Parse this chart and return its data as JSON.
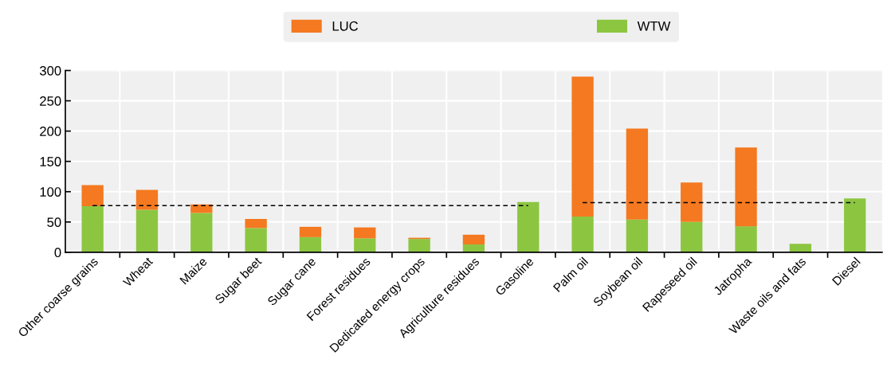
{
  "chart_data": {
    "type": "bar",
    "stacked": true,
    "categories": [
      "Other coarse grains",
      "Wheat",
      "Maize",
      "Sugar beet",
      "Sugar cane",
      "Forest residues",
      "Dedicated energy crops",
      "Agriculture residues",
      "Gasoline",
      "Palm oil",
      "Soybean oil",
      "Rapeseed oil",
      "Jatropha",
      "Waste oils and fats",
      "Diesel"
    ],
    "series": [
      {
        "name": "WTW",
        "color": "#8cc641",
        "values": [
          76,
          70,
          65,
          40,
          25,
          23,
          22,
          13,
          83,
          59,
          54,
          50,
          43,
          14,
          89
        ]
      },
      {
        "name": "LUC",
        "color": "#f47920",
        "values": [
          35,
          33,
          14,
          15,
          17,
          18,
          2,
          16,
          0,
          231,
          150,
          65,
          130,
          0,
          0
        ]
      },
      {
        "type": "line",
        "color": "#000000",
        "line_style": "dashed",
        "values": [
          77,
          77,
          77,
          77,
          77,
          77,
          77,
          77,
          77,
          null,
          null,
          null,
          null,
          null,
          null
        ]
      },
      {
        "type": "line",
        "color": "#000000",
        "line_style": "dashed",
        "values": [
          null,
          null,
          null,
          null,
          null,
          null,
          null,
          null,
          null,
          82,
          82,
          82,
          82,
          82,
          82
        ]
      }
    ],
    "ylim": [
      0,
      300
    ],
    "yticks": [
      0,
      50,
      100,
      150,
      200,
      250,
      300
    ],
    "grid": true,
    "legend": "top"
  }
}
